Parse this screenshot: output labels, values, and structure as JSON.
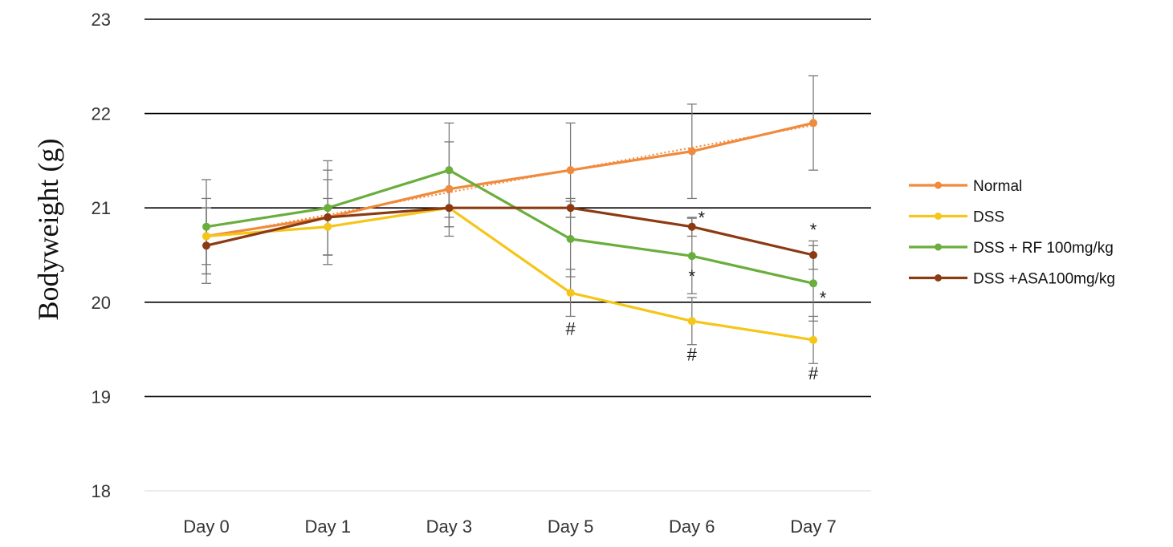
{
  "chart_data": {
    "type": "line",
    "title": "",
    "xlabel": "",
    "ylabel": "Bodyweight (g)",
    "categories": [
      "Day 0",
      "Day 1",
      "Day 3",
      "Day 5",
      "Day 6",
      "Day 7"
    ],
    "ylim": [
      18,
      23
    ],
    "yticks": [
      "18",
      "19",
      "20",
      "21",
      "22",
      "23"
    ],
    "grid": true,
    "legend_position": "right",
    "series": [
      {
        "name": "Normal",
        "color": "#F08A3C",
        "values": [
          20.7,
          20.9,
          21.2,
          21.4,
          21.6,
          21.9
        ],
        "errors": [
          0.4,
          0.5,
          0.5,
          0.5,
          0.5,
          0.5
        ],
        "trendline": true
      },
      {
        "name": "DSS",
        "color": "#F5C518",
        "values": [
          20.7,
          20.8,
          21.0,
          20.1,
          19.8,
          19.6
        ],
        "errors": [
          0.3,
          0.3,
          0.2,
          0.25,
          0.25,
          0.25
        ]
      },
      {
        "name": "DSS + RF 100mg/kg",
        "color": "#6AAE3C",
        "values": [
          20.8,
          21.0,
          21.4,
          20.67,
          20.49,
          20.2
        ],
        "errors": [
          0.5,
          0.5,
          0.5,
          0.4,
          0.4,
          0.4
        ]
      },
      {
        "name": "DSS +ASA100mg/kg",
        "color": "#8B3A12",
        "values": [
          20.6,
          20.9,
          21.0,
          21.0,
          20.8,
          20.5
        ],
        "errors": [
          0.4,
          0.4,
          0.2,
          0.1,
          0.1,
          0.15
        ]
      }
    ],
    "annotations": [
      {
        "text": "#",
        "category": "Day 5",
        "value": 19.72
      },
      {
        "text": "#",
        "category": "Day 6",
        "value": 19.45
      },
      {
        "text": "#",
        "category": "Day 7",
        "value": 19.25
      },
      {
        "text": "*",
        "category": "Day 6",
        "value": 20.9,
        "offset": "right"
      },
      {
        "text": "*",
        "category": "Day 6",
        "value": 20.28
      },
      {
        "text": "*",
        "category": "Day 7",
        "value": 20.77
      },
      {
        "text": "*",
        "category": "Day 7",
        "value": 20.05,
        "offset": "right"
      }
    ]
  }
}
